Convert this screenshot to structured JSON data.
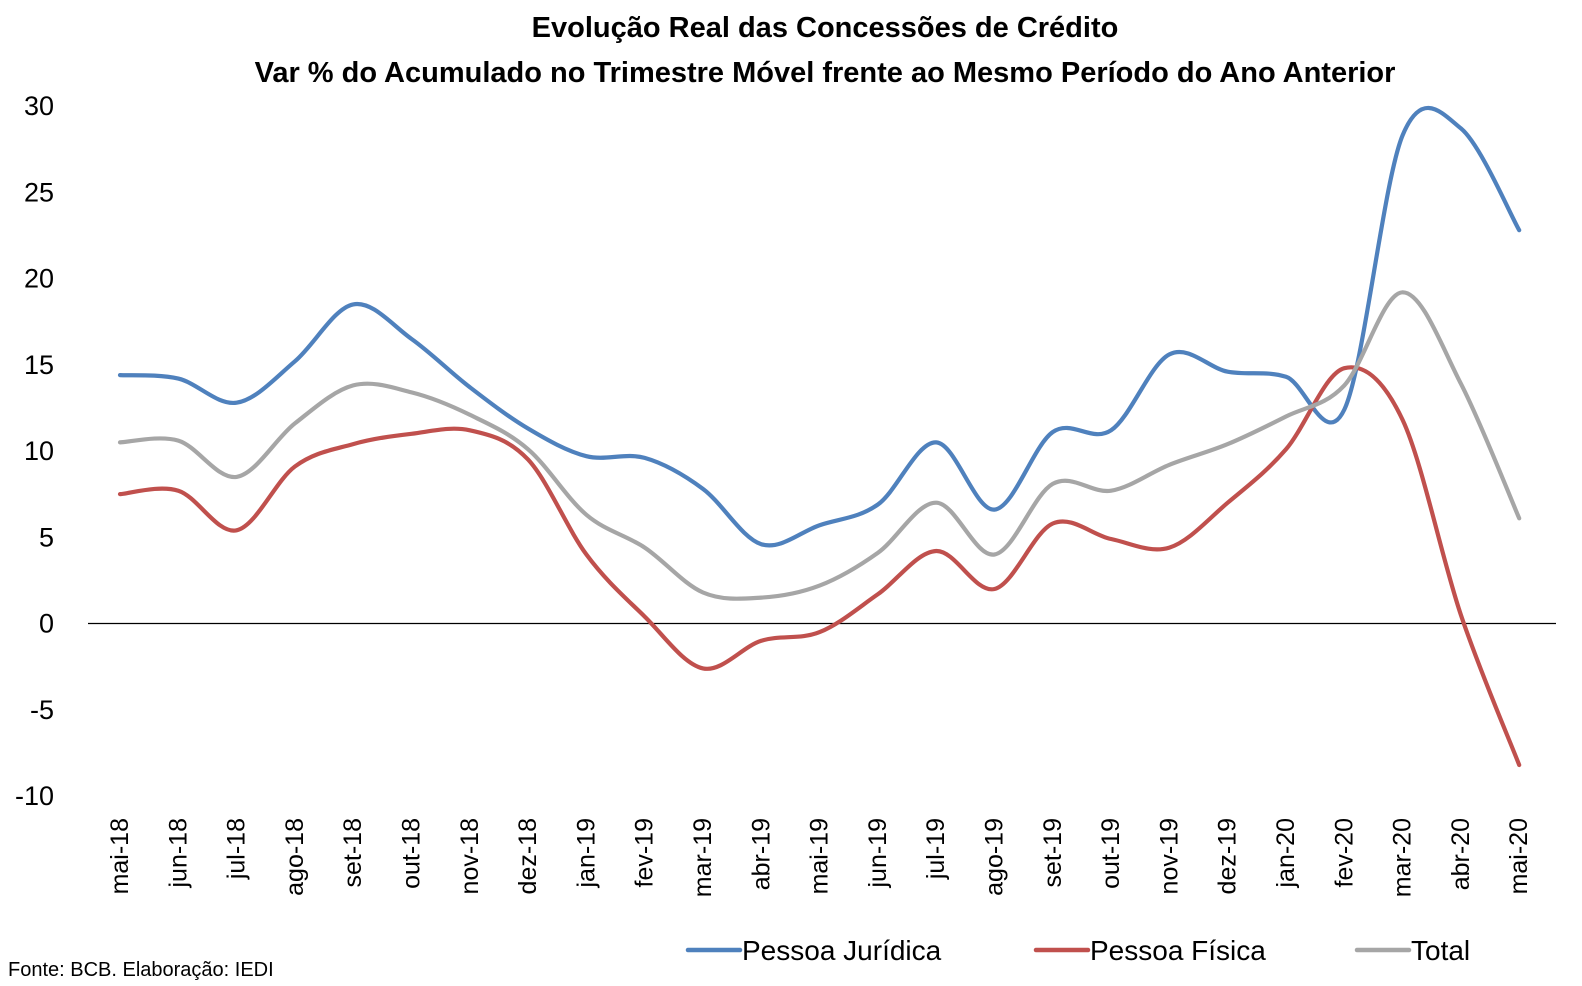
{
  "chart_data": {
    "type": "line",
    "title": "Evolução Real das Concessões de Crédito",
    "subtitle": "Var % do Acumulado no Trimestre Móvel frente ao Mesmo Período do Ano Anterior",
    "xlabel": "",
    "ylabel": "",
    "ylim": [
      -10,
      30
    ],
    "yticks": [
      "30",
      "25",
      "20",
      "15",
      "10",
      "5",
      "0",
      "-5",
      "-10"
    ],
    "categories": [
      "mai-18",
      "jun-18",
      "jul-18",
      "ago-18",
      "set-18",
      "out-18",
      "nov-18",
      "dez-18",
      "jan-19",
      "fev-19",
      "mar-19",
      "abr-19",
      "mai-19",
      "jun-19",
      "jul-19",
      "ago-19",
      "set-19",
      "out-19",
      "nov-19",
      "dez-19",
      "jan-20",
      "fev-20",
      "mar-20",
      "abr-20",
      "mai-20"
    ],
    "series": [
      {
        "name": "Pessoa Jurídica",
        "color": "#4F81BD",
        "values": [
          14.4,
          14.2,
          12.8,
          15.2,
          18.5,
          16.5,
          13.7,
          11.3,
          9.7,
          9.6,
          7.8,
          4.6,
          5.7,
          6.9,
          10.5,
          6.6,
          11.1,
          11.2,
          15.6,
          14.6,
          14.3,
          12.4,
          28.3,
          28.7,
          22.8
        ]
      },
      {
        "name": "Pessoa Física",
        "color": "#C0504D",
        "values": [
          7.5,
          7.7,
          5.4,
          9.1,
          10.4,
          11.0,
          11.2,
          9.5,
          4.0,
          0.4,
          -2.6,
          -1.0,
          -0.5,
          1.7,
          4.2,
          2.0,
          5.8,
          4.9,
          4.4,
          7.0,
          10.1,
          14.8,
          11.8,
          0.5,
          -8.2
        ]
      },
      {
        "name": "Total",
        "color": "#A6A6A6",
        "values": [
          10.5,
          10.6,
          8.5,
          11.6,
          13.8,
          13.4,
          12.1,
          10.1,
          6.3,
          4.4,
          1.8,
          1.5,
          2.2,
          4.1,
          7.0,
          4.0,
          8.1,
          7.7,
          9.2,
          10.4,
          12.0,
          13.8,
          19.2,
          13.9,
          6.1
        ]
      }
    ],
    "grid": false,
    "zero_line": true,
    "legend_position": "bottom"
  },
  "source": "Fonte: BCB. Elaboração: IEDI"
}
